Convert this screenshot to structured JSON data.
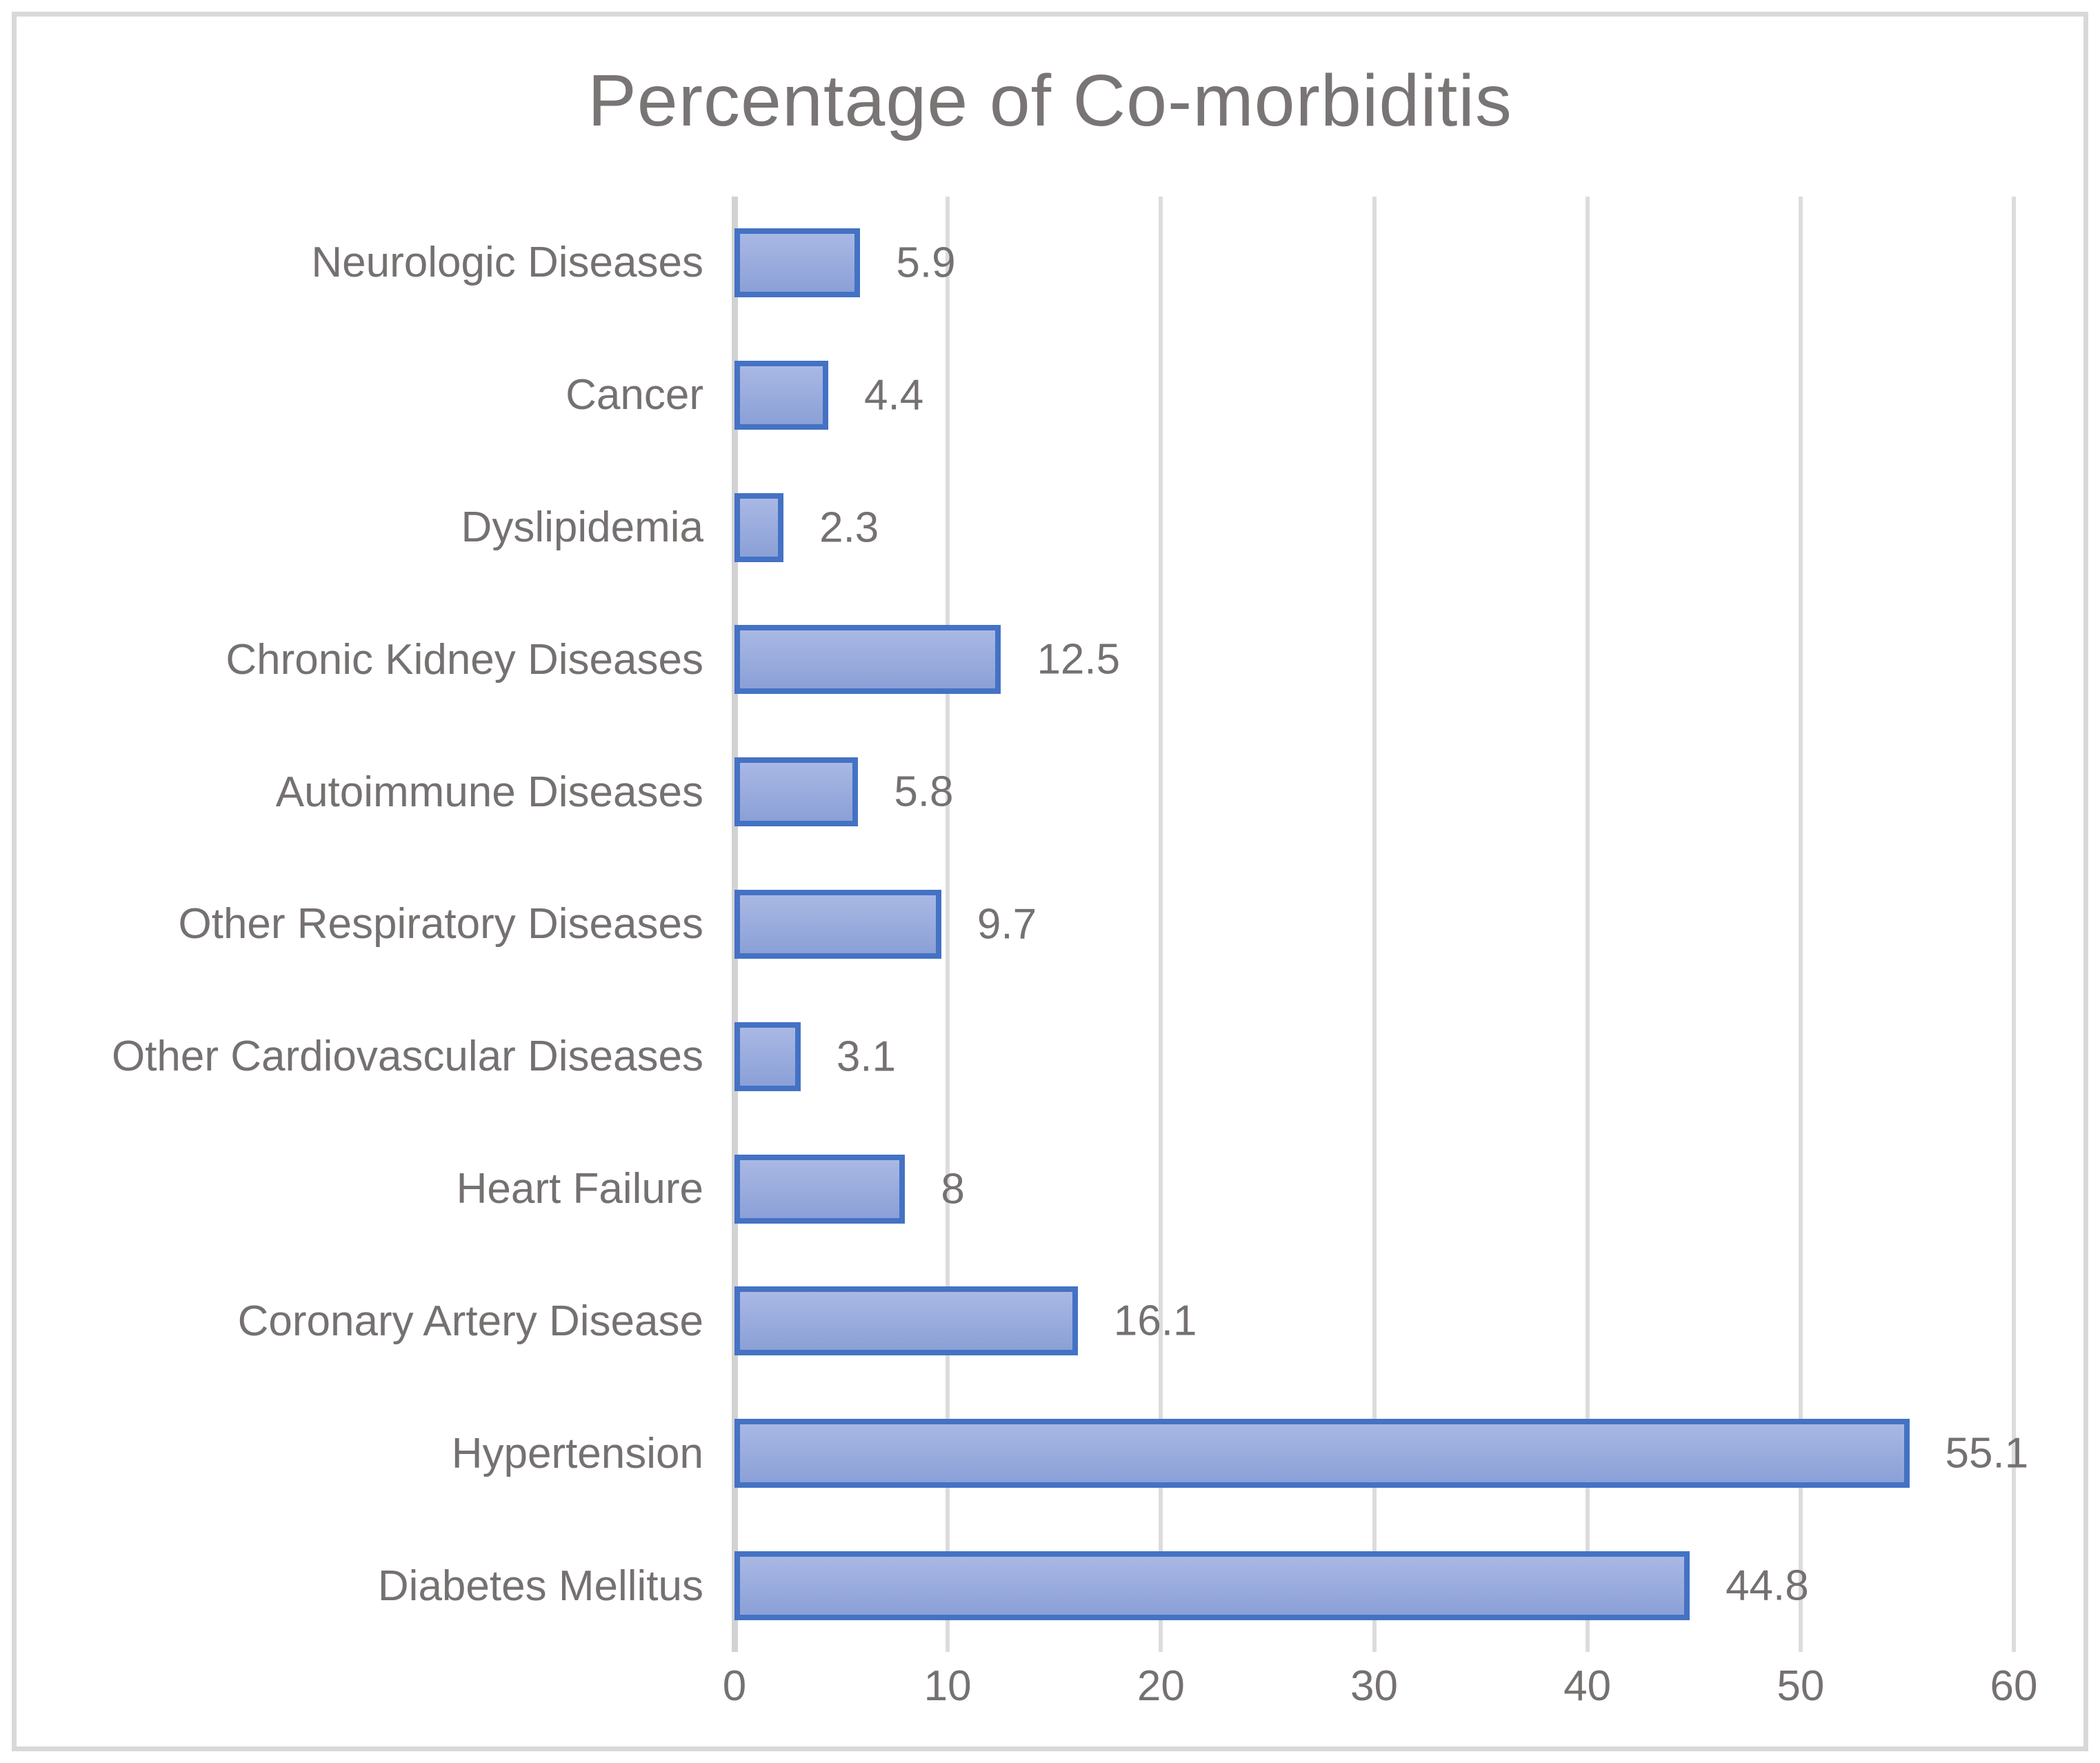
{
  "chart_data": {
    "type": "bar",
    "orientation": "horizontal",
    "title": "Percentage of Co-morbiditis",
    "categories": [
      "Neurologic Diseases",
      "Cancer",
      "Dyslipidemia",
      "Chronic Kidney Diseases",
      "Autoimmune Diseases",
      "Other Respiratory Diseases",
      "Other Cardiovascular Diseases",
      "Heart Failure",
      "Coronary Artery Disease",
      "Hypertension",
      "Diabetes Mellitus"
    ],
    "values": [
      5.9,
      4.4,
      2.3,
      12.5,
      5.8,
      9.7,
      3.1,
      8,
      16.1,
      55.1,
      44.8
    ],
    "xlabel": "",
    "ylabel": "",
    "xlim": [
      0,
      60
    ],
    "x_ticks": [
      0,
      10,
      20,
      30,
      40,
      50,
      60
    ],
    "grid": "vertical-only",
    "legend": "none",
    "data_labels": "outside-end",
    "colors": {
      "bar_border": "#4472c4",
      "bar_fill_top": "#a9b8e4",
      "bar_fill_bottom": "#8ba0d7",
      "gridline": "#dcdcdc",
      "axis_line": "#d2d2d2",
      "title_text": "#7a7575",
      "label_text": "#767171",
      "frame_border": "#d8d8d8",
      "background": "#ffffff"
    }
  }
}
